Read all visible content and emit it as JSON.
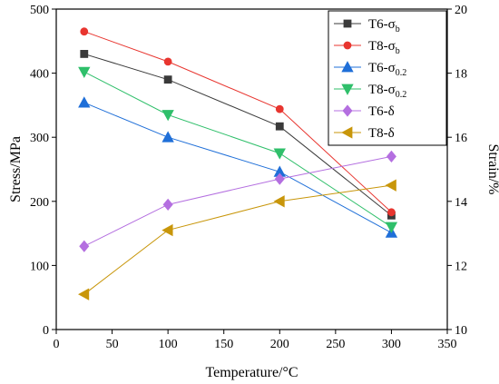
{
  "chart_data": {
    "type": "line",
    "xlabel": "Temperature/°C",
    "ylabel_left": "Stress/MPa",
    "ylabel_right": "Strain/%",
    "xlim": [
      0,
      350
    ],
    "ylim_left": [
      0,
      500
    ],
    "ylim_right": [
      10,
      20
    ],
    "x_ticks": [
      0,
      50,
      100,
      150,
      200,
      250,
      300,
      350
    ],
    "y_left_ticks": [
      0,
      100,
      200,
      300,
      400,
      500
    ],
    "y_right_ticks": [
      10,
      12,
      14,
      16,
      18,
      20
    ],
    "grid": false,
    "legend_position": "top-right",
    "series": [
      {
        "name": "T6-σb",
        "label_base": "T6-σ",
        "label_sub": "b",
        "axis": "left",
        "marker": "square",
        "color": "#3a3a3a",
        "x": [
          25,
          100,
          200,
          300
        ],
        "values": [
          430,
          390,
          317,
          178
        ]
      },
      {
        "name": "T8-σb",
        "label_base": "T8-σ",
        "label_sub": "b",
        "axis": "left",
        "marker": "circle",
        "color": "#e8352f",
        "x": [
          25,
          100,
          200,
          300
        ],
        "values": [
          465,
          418,
          344,
          183
        ]
      },
      {
        "name": "T6-σ0.2",
        "label_base": "T6-σ",
        "label_sub": "0.2",
        "axis": "left",
        "marker": "triangle-up",
        "color": "#1f6fd8",
        "x": [
          25,
          100,
          200,
          300
        ],
        "values": [
          354,
          300,
          246,
          151
        ]
      },
      {
        "name": "T8-σ0.2",
        "label_base": "T8-σ",
        "label_sub": "0.2",
        "axis": "left",
        "marker": "triangle-down",
        "color": "#2fbf6a",
        "x": [
          25,
          100,
          200,
          300
        ],
        "values": [
          402,
          335,
          275,
          160
        ]
      },
      {
        "name": "T6-δ",
        "label_base": "T6-δ",
        "label_sub": "",
        "axis": "right",
        "marker": "diamond",
        "color": "#b46fe0",
        "x": [
          25,
          100,
          200,
          300
        ],
        "values": [
          12.6,
          13.9,
          14.7,
          15.4
        ]
      },
      {
        "name": "T8-δ",
        "label_base": "T8-δ",
        "label_sub": "",
        "axis": "right",
        "marker": "triangle-left",
        "color": "#c8960a",
        "x": [
          25,
          100,
          200,
          300
        ],
        "values": [
          11.1,
          13.1,
          14.0,
          14.5
        ]
      }
    ]
  }
}
